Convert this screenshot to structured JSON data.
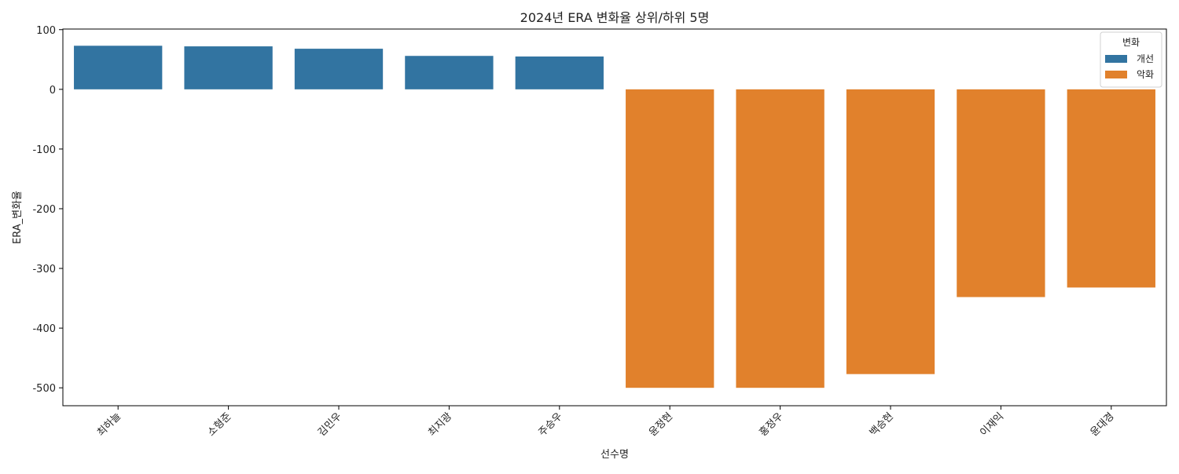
{
  "chart_data": {
    "type": "bar",
    "title": "2024년 ERA 변화율 상위/하위 5명",
    "xlabel": "선수명",
    "ylabel": "ERA_변화율",
    "ylim": [
      -530,
      101
    ],
    "yticks": [
      100,
      0,
      -100,
      -200,
      -300,
      -400,
      -500
    ],
    "grid": false,
    "categories": [
      "최하늘",
      "소형준",
      "김민우",
      "최지광",
      "주승우",
      "윤정현",
      "홍정우",
      "백승현",
      "이재익",
      "윤대경"
    ],
    "values": [
      73,
      72,
      68,
      56,
      55,
      -500,
      -500,
      -477,
      -348,
      -332
    ],
    "groups": [
      "개선",
      "개선",
      "개선",
      "개선",
      "개선",
      "악화",
      "악화",
      "악화",
      "악화",
      "악화"
    ],
    "legend": {
      "title": "변화",
      "placement": "top-right",
      "entries": [
        {
          "label": "개선",
          "color": "#3274a1"
        },
        {
          "label": "악화",
          "color": "#e1812c"
        }
      ]
    }
  }
}
